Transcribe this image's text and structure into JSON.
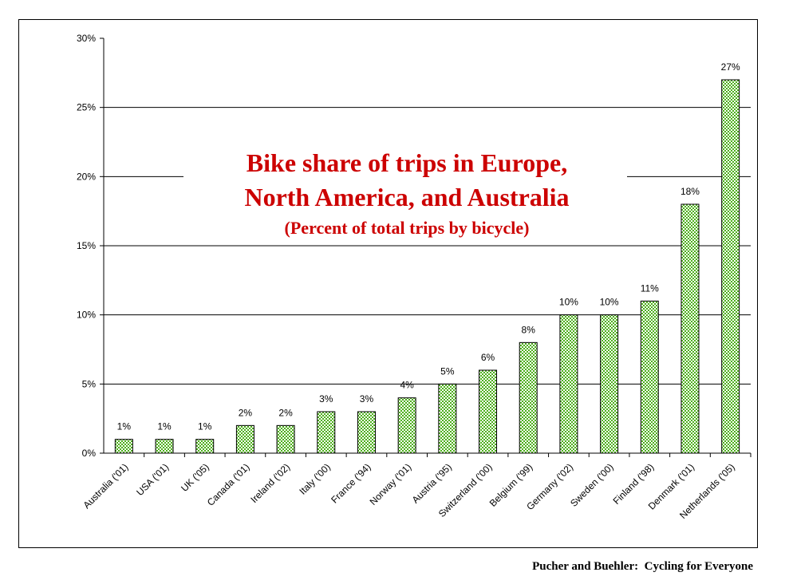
{
  "chart_data": {
    "type": "bar",
    "title_lines": [
      "Bike share of trips in Europe,",
      "North America, and Australia"
    ],
    "subtitle": "(Percent of total trips by bicycle)",
    "xlabel": "",
    "ylabel": "",
    "ylim": [
      0,
      30
    ],
    "yticks": [
      0,
      5,
      10,
      15,
      20,
      25,
      30
    ],
    "ytick_labels": [
      "0%",
      "5%",
      "10%",
      "15%",
      "20%",
      "25%",
      "30%"
    ],
    "grid": true,
    "bar_fill": "green-white checkered",
    "colors": {
      "bar_dark": "#4caf1a",
      "bar_light": "#ffffff",
      "title": "#cc0000"
    },
    "categories": [
      "Australia ('01)",
      "USA ('01)",
      "UK ('05)",
      "Canada ('01)",
      "Ireland ('02)",
      "Italy ('00)",
      "France ('94)",
      "Norway ('01)",
      "Austria ('95)",
      "Switzerland ('00)",
      "Belgium ('99)",
      "Germany ('02)",
      "Sweden ('00)",
      "Finland ('98)",
      "Denmark ('01)",
      "Netherlands ('05)"
    ],
    "values": [
      1,
      1,
      1,
      2,
      2,
      3,
      3,
      4,
      5,
      6,
      8,
      10,
      10,
      11,
      18,
      27
    ],
    "value_labels": [
      "1%",
      "1%",
      "1%",
      "2%",
      "2%",
      "3%",
      "3%",
      "4%",
      "5%",
      "6%",
      "8%",
      "10%",
      "10%",
      "11%",
      "18%",
      "27%"
    ]
  },
  "footer": "Pucher and Buehler:  Cycling for Everyone"
}
